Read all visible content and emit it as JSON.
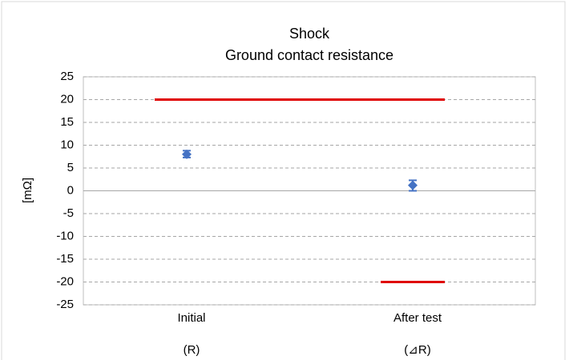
{
  "chart_data": {
    "type": "errorbar",
    "title": [
      "Shock",
      "Ground contact resistance"
    ],
    "y_label": "[mΩ]",
    "categories": [
      "Initial",
      "After test"
    ],
    "sublabels": [
      "(R)",
      "(⊿R)"
    ],
    "values": [
      8,
      1.2
    ],
    "max": [
      8.8,
      2.3
    ],
    "min": [
      7.3,
      0
    ],
    "color": "#4472c4",
    "limits": {
      "color": "#e00000",
      "upper": [
        20,
        20
      ],
      "lower": [
        null,
        -20
      ]
    },
    "ylim": [
      -25,
      25
    ],
    "yticks": [
      -25,
      -20,
      -15,
      -10,
      -5,
      0,
      5,
      10,
      15,
      20,
      25
    ],
    "grid": true
  }
}
